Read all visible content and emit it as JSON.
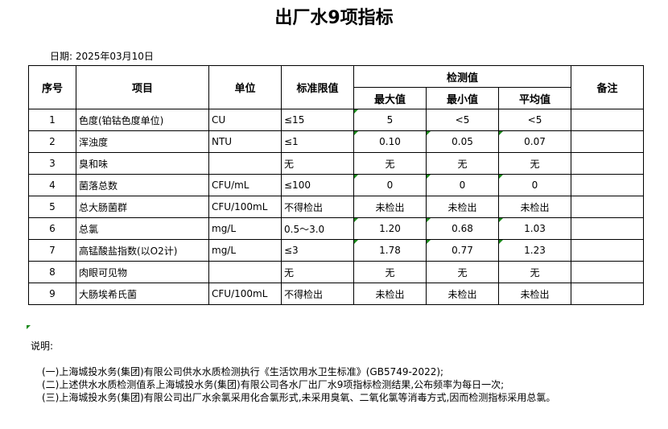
{
  "title": "出厂水9项指标",
  "date": "日期: 2025年03月10日",
  "headers": {
    "no": "序号",
    "item": "项目",
    "unit": "单位",
    "limit": "标准限值",
    "measured": "检测值",
    "max": "最大值",
    "min": "最小值",
    "avg": "平均值",
    "remark": "备注"
  },
  "rows": [
    {
      "no": "1",
      "item": "色度(铂钴色度单位)",
      "unit": "CU",
      "limit": "≤15",
      "max": "5",
      "min": "<5",
      "avg": "<5",
      "flags": [
        1,
        0,
        0
      ]
    },
    {
      "no": "2",
      "item": "浑浊度",
      "unit": "NTU",
      "limit": "≤1",
      "max": "0.10",
      "min": "0.05",
      "avg": "0.07",
      "flags": [
        1,
        1,
        1
      ]
    },
    {
      "no": "3",
      "item": "臭和味",
      "unit": "",
      "limit": "无",
      "max": "无",
      "min": "无",
      "avg": "无",
      "flags": [
        0,
        0,
        0
      ]
    },
    {
      "no": "4",
      "item": "菌落总数",
      "unit": "CFU/mL",
      "limit": "≤100",
      "max": "0",
      "min": "0",
      "avg": "0",
      "flags": [
        1,
        1,
        1
      ]
    },
    {
      "no": "5",
      "item": "总大肠菌群",
      "unit": "CFU/100mL",
      "limit": "不得检出",
      "max": "未检出",
      "min": "未检出",
      "avg": "未检出",
      "flags": [
        0,
        0,
        0
      ]
    },
    {
      "no": "6",
      "item": "总氯",
      "unit": "mg/L",
      "limit": "0.5～3.0",
      "max": "1.20",
      "min": "0.68",
      "avg": "1.03",
      "flags": [
        1,
        1,
        1
      ]
    },
    {
      "no": "7",
      "item": "高锰酸盐指数(以O2计)",
      "unit": "mg/L",
      "limit": "≤3",
      "max": "1.78",
      "min": "0.77",
      "avg": "1.23",
      "flags": [
        1,
        1,
        1
      ]
    },
    {
      "no": "8",
      "item": "肉眼可见物",
      "unit": "",
      "limit": "无",
      "max": "无",
      "min": "无",
      "avg": "无",
      "flags": [
        0,
        0,
        0
      ]
    },
    {
      "no": "9",
      "item": "大肠埃希氏菌",
      "unit": "CFU/100mL",
      "limit": "不得检出",
      "max": "未检出",
      "min": "未检出",
      "avg": "未检出",
      "flags": [
        0,
        0,
        0
      ]
    }
  ],
  "notes": {
    "heading": "说明:",
    "items": [
      "(一)上海城投水务(集团)有限公司供水水质检测执行《生活饮用水卫生标准》(GB5749-2022);",
      "(二)上述供水水质检测值系上海城投水务(集团)有限公司各水厂出厂水9项指标检测结果,公布频率为每日一次;",
      "(三)上海城投水务(集团)有限公司出厂水余氯采用化合氯形式,未采用臭氧、二氧化氯等消毒方式,因而检测指标采用总氯。"
    ]
  },
  "colors": {
    "comment_marker": "#1a8a1a"
  }
}
